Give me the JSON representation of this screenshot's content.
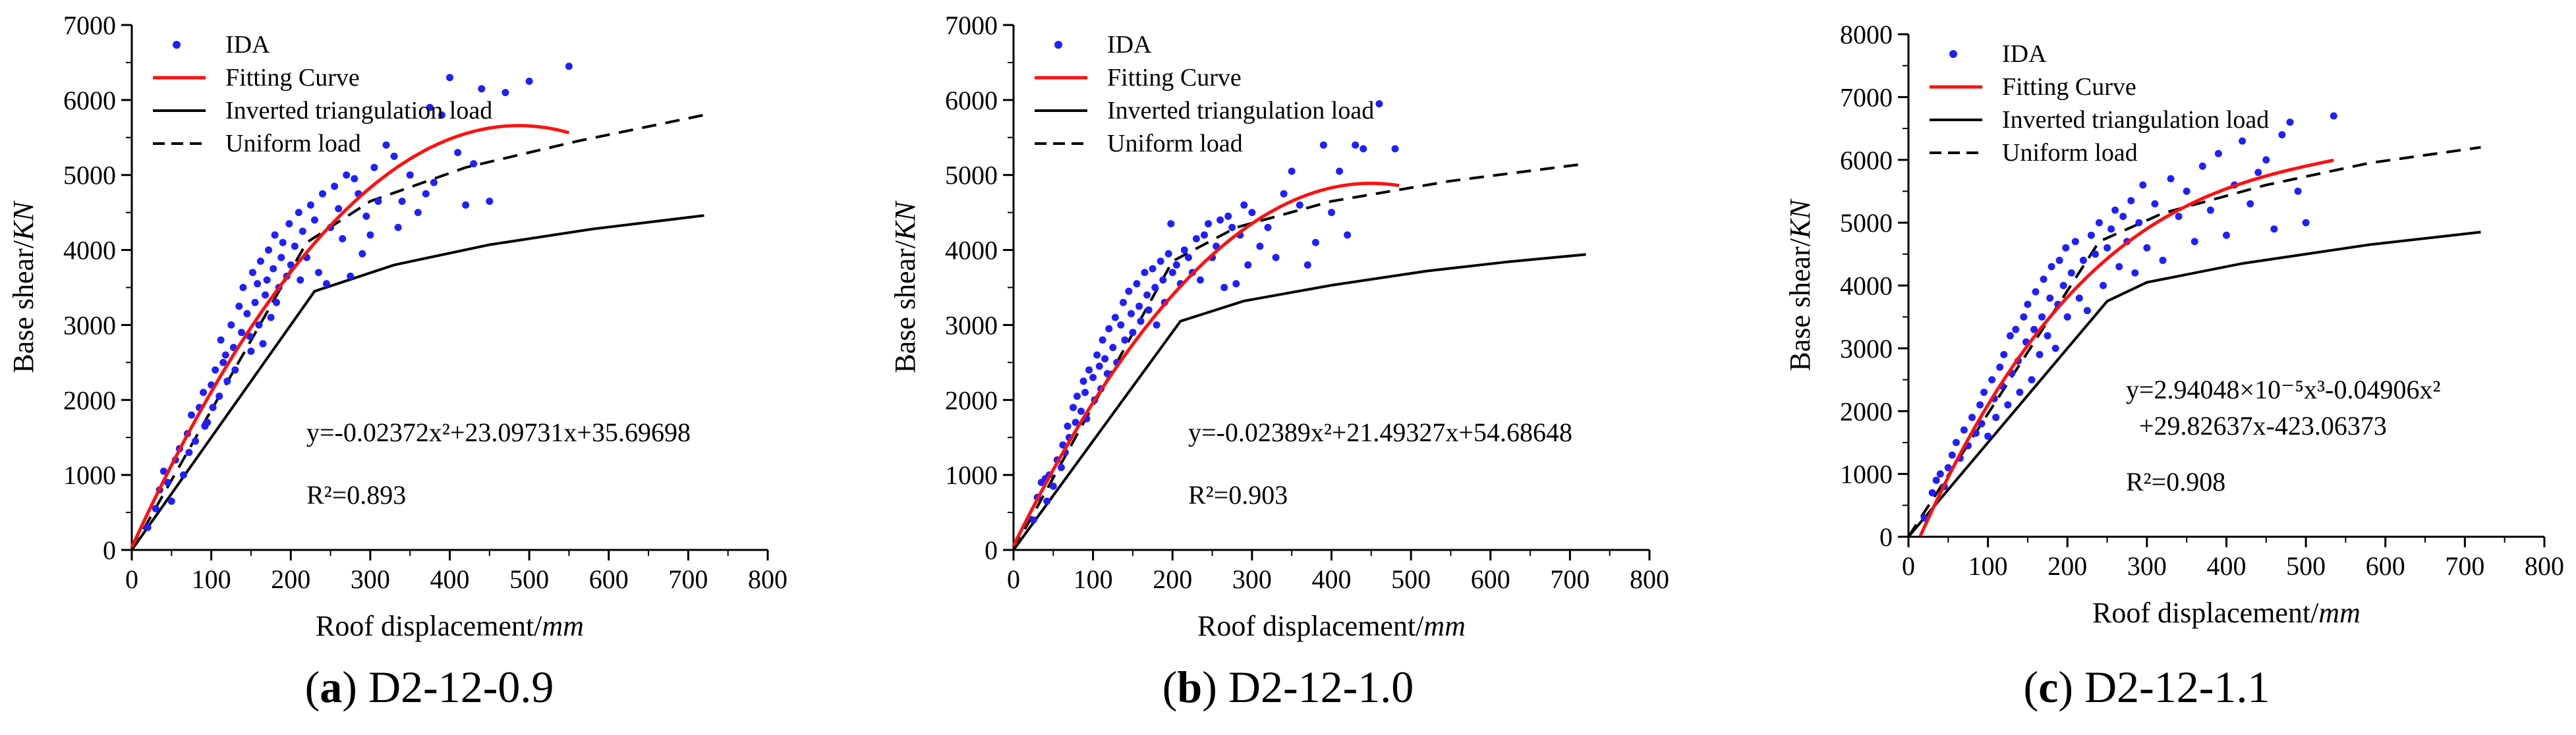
{
  "chart_data": [
    {
      "type": "scatter",
      "caption_letter": "a",
      "caption_text": "D2-12-0.9",
      "xlabel": "Roof displacement/",
      "xlabel_unit": "mm",
      "ylabel": "Base shear/",
      "ylabel_unit": "KN",
      "xlim": [
        0,
        800
      ],
      "ylim": [
        0,
        7000
      ],
      "xticks": [
        0,
        100,
        200,
        300,
        400,
        500,
        600,
        700,
        800
      ],
      "yticks": [
        0,
        1000,
        2000,
        3000,
        4000,
        5000,
        6000,
        7000
      ],
      "legend": [
        "IDA",
        "Fitting Curve",
        "Inverted triangulation load",
        "Uniform load"
      ],
      "equation_line1": "y=-0.02372x²+23.09731x+35.69698",
      "equation_line2": "",
      "r2": "R²=0.893",
      "fit": {
        "coeffs": [
          0,
          -0.02372,
          23.09731,
          35.69698
        ],
        "xmax": 550
      },
      "inverted_triangular": [
        [
          0,
          0
        ],
        [
          230,
          3450
        ],
        [
          330,
          3800
        ],
        [
          450,
          4070
        ],
        [
          580,
          4280
        ],
        [
          720,
          4460
        ]
      ],
      "uniform": [
        [
          0,
          0
        ],
        [
          220,
          4100
        ],
        [
          300,
          4650
        ],
        [
          420,
          5100
        ],
        [
          560,
          5450
        ],
        [
          720,
          5800
        ]
      ],
      "ida": [
        [
          20,
          300
        ],
        [
          30,
          550
        ],
        [
          35,
          800
        ],
        [
          40,
          1050
        ],
        [
          45,
          900
        ],
        [
          50,
          650
        ],
        [
          55,
          1200
        ],
        [
          60,
          1350
        ],
        [
          65,
          1000
        ],
        [
          70,
          1550
        ],
        [
          72,
          1300
        ],
        [
          75,
          1800
        ],
        [
          80,
          1450
        ],
        [
          85,
          1900
        ],
        [
          90,
          2100
        ],
        [
          92,
          1650
        ],
        [
          95,
          1700
        ],
        [
          100,
          2200
        ],
        [
          102,
          1900
        ],
        [
          105,
          2400
        ],
        [
          110,
          2050
        ],
        [
          112,
          2800
        ],
        [
          115,
          2500
        ],
        [
          118,
          2600
        ],
        [
          120,
          2250
        ],
        [
          125,
          3000
        ],
        [
          128,
          2700
        ],
        [
          130,
          2400
        ],
        [
          135,
          3250
        ],
        [
          138,
          2900
        ],
        [
          140,
          3500
        ],
        [
          145,
          3150
        ],
        [
          148,
          2850
        ],
        [
          150,
          2650
        ],
        [
          152,
          3700
        ],
        [
          155,
          3300
        ],
        [
          158,
          3550
        ],
        [
          160,
          3000
        ],
        [
          162,
          3850
        ],
        [
          165,
          2750
        ],
        [
          168,
          3400
        ],
        [
          170,
          3600
        ],
        [
          172,
          4000
        ],
        [
          175,
          3100
        ],
        [
          178,
          3750
        ],
        [
          180,
          4200
        ],
        [
          182,
          3300
        ],
        [
          185,
          3500
        ],
        [
          188,
          3900
        ],
        [
          190,
          4100
        ],
        [
          195,
          3650
        ],
        [
          198,
          4350
        ],
        [
          200,
          3800
        ],
        [
          205,
          4050
        ],
        [
          210,
          4500
        ],
        [
          212,
          3600
        ],
        [
          215,
          4250
        ],
        [
          220,
          3900
        ],
        [
          225,
          4600
        ],
        [
          230,
          4400
        ],
        [
          235,
          3700
        ],
        [
          240,
          4750
        ],
        [
          245,
          3550
        ],
        [
          250,
          4300
        ],
        [
          255,
          4850
        ],
        [
          260,
          4550
        ],
        [
          265,
          4150
        ],
        [
          270,
          5000
        ],
        [
          275,
          3650
        ],
        [
          280,
          4950
        ],
        [
          285,
          4750
        ],
        [
          290,
          3950
        ],
        [
          295,
          4450
        ],
        [
          300,
          4200
        ],
        [
          305,
          5100
        ],
        [
          310,
          4650
        ],
        [
          320,
          5400
        ],
        [
          330,
          5250
        ],
        [
          335,
          4300
        ],
        [
          340,
          4650
        ],
        [
          350,
          5000
        ],
        [
          360,
          4500
        ],
        [
          370,
          4750
        ],
        [
          375,
          5900
        ],
        [
          380,
          4900
        ],
        [
          390,
          5800
        ],
        [
          400,
          6300
        ],
        [
          410,
          5300
        ],
        [
          420,
          4600
        ],
        [
          430,
          5150
        ],
        [
          440,
          6150
        ],
        [
          450,
          4650
        ],
        [
          470,
          6100
        ],
        [
          500,
          6250
        ],
        [
          550,
          6450
        ]
      ]
    },
    {
      "type": "scatter",
      "caption_letter": "b",
      "caption_text": "D2-12-1.0",
      "xlabel": "Roof displacement/",
      "xlabel_unit": "mm",
      "ylabel": "Base shear/",
      "ylabel_unit": "KN",
      "xlim": [
        0,
        800
      ],
      "ylim": [
        0,
        7000
      ],
      "xticks": [
        0,
        100,
        200,
        300,
        400,
        500,
        600,
        700,
        800
      ],
      "yticks": [
        0,
        1000,
        2000,
        3000,
        4000,
        5000,
        6000,
        7000
      ],
      "legend": [
        "IDA",
        "Fitting Curve",
        "Inverted triangulation load",
        "Uniform load"
      ],
      "equation_line1": "y=-0.02389x²+21.49327x+54.68648",
      "equation_line2": "",
      "r2": "R²=0.903",
      "fit": {
        "coeffs": [
          0,
          -0.02389,
          21.49327,
          54.68648
        ],
        "xmax": 485
      },
      "inverted_triangular": [
        [
          0,
          0
        ],
        [
          210,
          3050
        ],
        [
          290,
          3320
        ],
        [
          400,
          3530
        ],
        [
          520,
          3720
        ],
        [
          620,
          3840
        ],
        [
          720,
          3940
        ]
      ],
      "uniform": [
        [
          0,
          0
        ],
        [
          200,
          3850
        ],
        [
          280,
          4300
        ],
        [
          400,
          4650
        ],
        [
          550,
          4920
        ],
        [
          720,
          5150
        ]
      ],
      "ida": [
        [
          25,
          400
        ],
        [
          30,
          700
        ],
        [
          35,
          900
        ],
        [
          40,
          950
        ],
        [
          42,
          650
        ],
        [
          45,
          1000
        ],
        [
          50,
          850
        ],
        [
          55,
          1200
        ],
        [
          60,
          1100
        ],
        [
          62,
          1400
        ],
        [
          65,
          1300
        ],
        [
          68,
          1650
        ],
        [
          70,
          1500
        ],
        [
          75,
          1900
        ],
        [
          78,
          1700
        ],
        [
          80,
          2050
        ],
        [
          85,
          1850
        ],
        [
          88,
          2250
        ],
        [
          90,
          2100
        ],
        [
          92,
          1750
        ],
        [
          95,
          2400
        ],
        [
          100,
          2300
        ],
        [
          102,
          2000
        ],
        [
          105,
          2600
        ],
        [
          108,
          2450
        ],
        [
          110,
          2150
        ],
        [
          112,
          2800
        ],
        [
          115,
          2550
        ],
        [
          118,
          2350
        ],
        [
          120,
          2950
        ],
        [
          125,
          2700
        ],
        [
          128,
          3100
        ],
        [
          130,
          2500
        ],
        [
          135,
          3000
        ],
        [
          138,
          3300
        ],
        [
          140,
          2800
        ],
        [
          145,
          3450
        ],
        [
          148,
          3150
        ],
        [
          150,
          2900
        ],
        [
          155,
          3550
        ],
        [
          158,
          3250
        ],
        [
          160,
          3050
        ],
        [
          165,
          3700
        ],
        [
          168,
          3400
        ],
        [
          170,
          3200
        ],
        [
          175,
          3750
        ],
        [
          178,
          3500
        ],
        [
          180,
          3000
        ],
        [
          185,
          3850
        ],
        [
          188,
          3600
        ],
        [
          190,
          3300
        ],
        [
          195,
          3950
        ],
        [
          198,
          4350
        ],
        [
          200,
          3700
        ],
        [
          205,
          3800
        ],
        [
          210,
          3550
        ],
        [
          215,
          4000
        ],
        [
          220,
          3900
        ],
        [
          225,
          3700
        ],
        [
          230,
          4150
        ],
        [
          235,
          3600
        ],
        [
          240,
          4200
        ],
        [
          245,
          4350
        ],
        [
          250,
          3900
        ],
        [
          255,
          4050
        ],
        [
          260,
          4400
        ],
        [
          265,
          3500
        ],
        [
          270,
          4450
        ],
        [
          275,
          4300
        ],
        [
          280,
          3550
        ],
        [
          285,
          4200
        ],
        [
          290,
          4600
        ],
        [
          295,
          3800
        ],
        [
          300,
          4500
        ],
        [
          310,
          4050
        ],
        [
          320,
          4300
        ],
        [
          330,
          3900
        ],
        [
          340,
          4750
        ],
        [
          350,
          5050
        ],
        [
          360,
          4600
        ],
        [
          370,
          3800
        ],
        [
          380,
          4100
        ],
        [
          390,
          5400
        ],
        [
          400,
          4500
        ],
        [
          410,
          5050
        ],
        [
          420,
          4200
        ],
        [
          430,
          5400
        ],
        [
          440,
          5350
        ],
        [
          460,
          5950
        ],
        [
          480,
          5350
        ]
      ]
    },
    {
      "type": "scatter",
      "caption_letter": "c",
      "caption_text": "D2-12-1.1",
      "xlabel": "Roof displacement/",
      "xlabel_unit": "mm",
      "ylabel": "Base shear/",
      "ylabel_unit": "KN",
      "xlim": [
        0,
        800
      ],
      "ylim": [
        0,
        8000
      ],
      "xticks": [
        0,
        100,
        200,
        300,
        400,
        500,
        600,
        700,
        800
      ],
      "yticks": [
        0,
        1000,
        2000,
        3000,
        4000,
        5000,
        6000,
        7000,
        8000
      ],
      "legend": [
        "IDA",
        "Fitting Curve",
        "Inverted triangulation load",
        "Uniform load"
      ],
      "equation_line1": "y=2.94048×10⁻⁵x³-0.04906x²",
      "equation_line2": "+29.82637x-423.06373",
      "r2": "R²=0.908",
      "fit": {
        "coeffs": [
          2.94048e-05,
          -0.04906,
          29.82637,
          -423.06373
        ],
        "xmax": 535,
        "xmin": 15
      },
      "inverted_triangular": [
        [
          0,
          0
        ],
        [
          250,
          3750
        ],
        [
          300,
          4050
        ],
        [
          420,
          4350
        ],
        [
          580,
          4650
        ],
        [
          720,
          4850
        ]
      ],
      "uniform": [
        [
          0,
          0
        ],
        [
          240,
          4700
        ],
        [
          320,
          5150
        ],
        [
          450,
          5600
        ],
        [
          580,
          5950
        ],
        [
          720,
          6200
        ]
      ],
      "ida": [
        [
          20,
          300
        ],
        [
          30,
          700
        ],
        [
          35,
          900
        ],
        [
          40,
          1000
        ],
        [
          45,
          800
        ],
        [
          50,
          1100
        ],
        [
          55,
          1300
        ],
        [
          60,
          1500
        ],
        [
          65,
          1250
        ],
        [
          70,
          1700
        ],
        [
          75,
          1450
        ],
        [
          80,
          1900
        ],
        [
          85,
          1650
        ],
        [
          90,
          2100
        ],
        [
          92,
          1800
        ],
        [
          95,
          2300
        ],
        [
          100,
          1600
        ],
        [
          105,
          2500
        ],
        [
          108,
          2200
        ],
        [
          110,
          1900
        ],
        [
          115,
          2700
        ],
        [
          118,
          2400
        ],
        [
          120,
          2900
        ],
        [
          125,
          2100
        ],
        [
          128,
          3200
        ],
        [
          130,
          2600
        ],
        [
          135,
          3300
        ],
        [
          138,
          2800
        ],
        [
          140,
          2300
        ],
        [
          145,
          3500
        ],
        [
          148,
          3100
        ],
        [
          150,
          3700
        ],
        [
          155,
          2500
        ],
        [
          158,
          3300
        ],
        [
          160,
          3900
        ],
        [
          165,
          2900
        ],
        [
          168,
          3500
        ],
        [
          170,
          4100
        ],
        [
          175,
          3200
        ],
        [
          178,
          3800
        ],
        [
          180,
          4300
        ],
        [
          185,
          3000
        ],
        [
          188,
          3700
        ],
        [
          190,
          4400
        ],
        [
          195,
          4000
        ],
        [
          198,
          4600
        ],
        [
          200,
          3500
        ],
        [
          205,
          4200
        ],
        [
          210,
          4700
        ],
        [
          215,
          3800
        ],
        [
          220,
          4400
        ],
        [
          225,
          3600
        ],
        [
          230,
          4800
        ],
        [
          235,
          4500
        ],
        [
          240,
          5000
        ],
        [
          245,
          4000
        ],
        [
          250,
          4600
        ],
        [
          255,
          4900
        ],
        [
          260,
          5200
        ],
        [
          265,
          4300
        ],
        [
          270,
          5100
        ],
        [
          275,
          4700
        ],
        [
          280,
          5350
        ],
        [
          285,
          4200
        ],
        [
          290,
          5000
        ],
        [
          295,
          5600
        ],
        [
          300,
          4600
        ],
        [
          310,
          5300
        ],
        [
          320,
          4400
        ],
        [
          330,
          5700
        ],
        [
          340,
          5100
        ],
        [
          350,
          5500
        ],
        [
          360,
          4700
        ],
        [
          370,
          5900
        ],
        [
          380,
          5200
        ],
        [
          390,
          6100
        ],
        [
          400,
          4800
        ],
        [
          410,
          5600
        ],
        [
          420,
          6300
        ],
        [
          430,
          5300
        ],
        [
          440,
          5800
        ],
        [
          450,
          6000
        ],
        [
          460,
          4900
        ],
        [
          470,
          6400
        ],
        [
          480,
          6600
        ],
        [
          490,
          5500
        ],
        [
          500,
          5000
        ],
        [
          535,
          6700
        ]
      ]
    }
  ]
}
